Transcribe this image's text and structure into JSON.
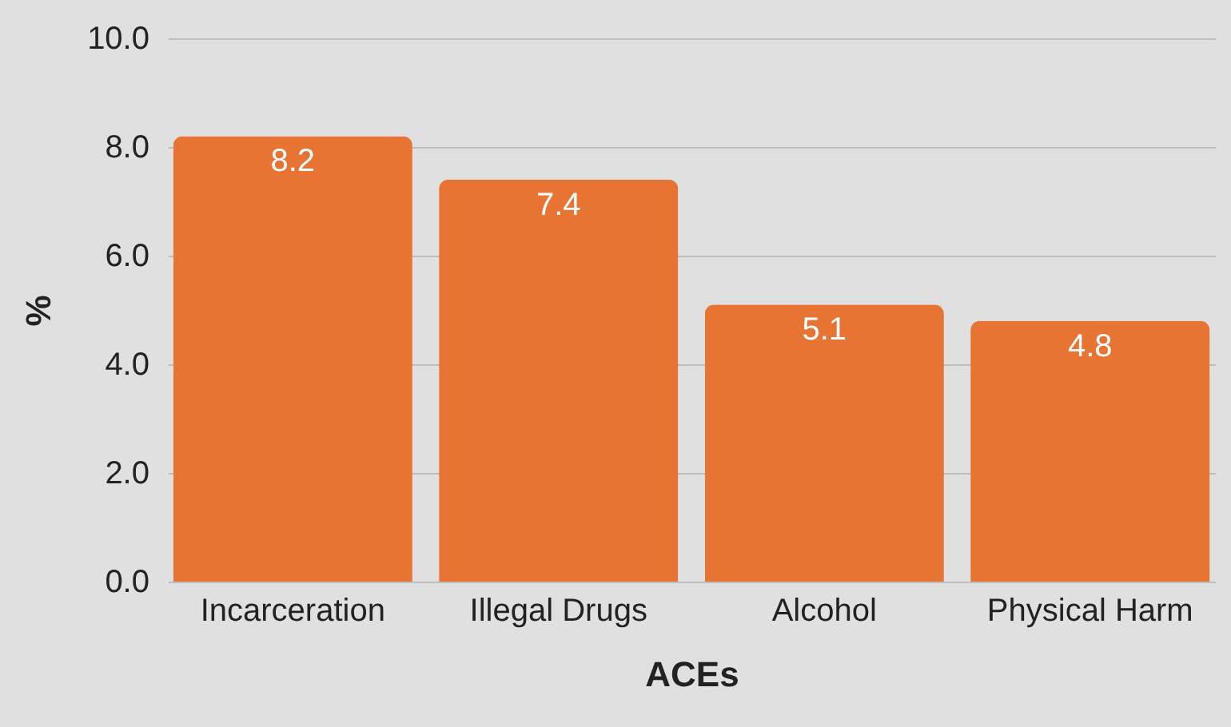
{
  "chart_data": {
    "type": "bar",
    "xlabel": "ACEs",
    "ylabel": "%",
    "categories": [
      "Incarceration",
      "Illegal Drugs",
      "Alcohol",
      "Physical Harm"
    ],
    "values": [
      8.2,
      7.4,
      5.1,
      4.8
    ],
    "color": "#e87434",
    "ylim": [
      0,
      10
    ],
    "yticks": [
      {
        "value": 0,
        "label": "0.0"
      },
      {
        "value": 2,
        "label": "2.0"
      },
      {
        "value": 4,
        "label": "4.0"
      },
      {
        "value": 6,
        "label": "6.0"
      },
      {
        "value": 8,
        "label": "8.0"
      },
      {
        "value": 10,
        "label": "10.0"
      }
    ],
    "grid": "y",
    "data_labels": true
  }
}
